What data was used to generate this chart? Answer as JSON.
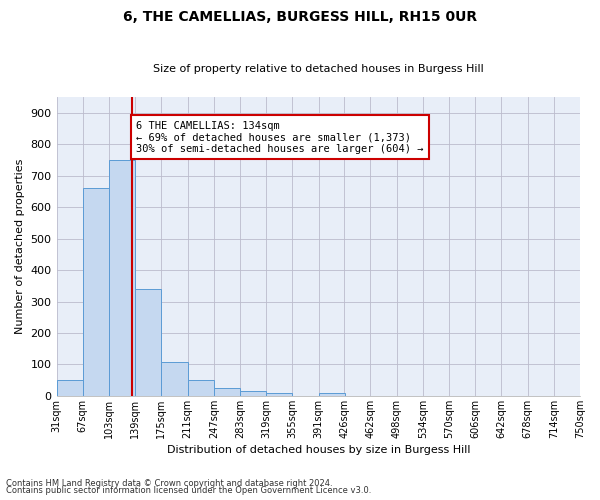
{
  "title": "6, THE CAMELLIAS, BURGESS HILL, RH15 0UR",
  "subtitle": "Size of property relative to detached houses in Burgess Hill",
  "xlabel": "Distribution of detached houses by size in Burgess Hill",
  "ylabel": "Number of detached properties",
  "bar_color": "#c5d8f0",
  "bar_edge_color": "#5b9bd5",
  "background_color": "#e8eef8",
  "grid_color": "#bbbbcc",
  "categories": [
    "31sqm",
    "67sqm",
    "103sqm",
    "139sqm",
    "175sqm",
    "211sqm",
    "247sqm",
    "283sqm",
    "319sqm",
    "355sqm",
    "391sqm",
    "426sqm",
    "462sqm",
    "498sqm",
    "534sqm",
    "570sqm",
    "606sqm",
    "642sqm",
    "678sqm",
    "714sqm",
    "750sqm"
  ],
  "bin_edges": [
    31,
    67,
    103,
    139,
    175,
    211,
    247,
    283,
    319,
    355,
    391,
    426,
    462,
    498,
    534,
    570,
    606,
    642,
    678,
    714,
    750
  ],
  "bar_heights": [
    50,
    660,
    750,
    340,
    107,
    50,
    25,
    15,
    10,
    0,
    8,
    0,
    0,
    0,
    0,
    0,
    0,
    0,
    0,
    0
  ],
  "ylim": [
    0,
    950
  ],
  "yticks": [
    0,
    100,
    200,
    300,
    400,
    500,
    600,
    700,
    800,
    900
  ],
  "vline_x": 134,
  "vline_color": "#cc0000",
  "annotation_text": "6 THE CAMELLIAS: 134sqm\n← 69% of detached houses are smaller (1,373)\n30% of semi-detached houses are larger (604) →",
  "annotation_box_color": "#ffffff",
  "annotation_box_edge": "#cc0000",
  "footnote1": "Contains HM Land Registry data © Crown copyright and database right 2024.",
  "footnote2": "Contains public sector information licensed under the Open Government Licence v3.0."
}
